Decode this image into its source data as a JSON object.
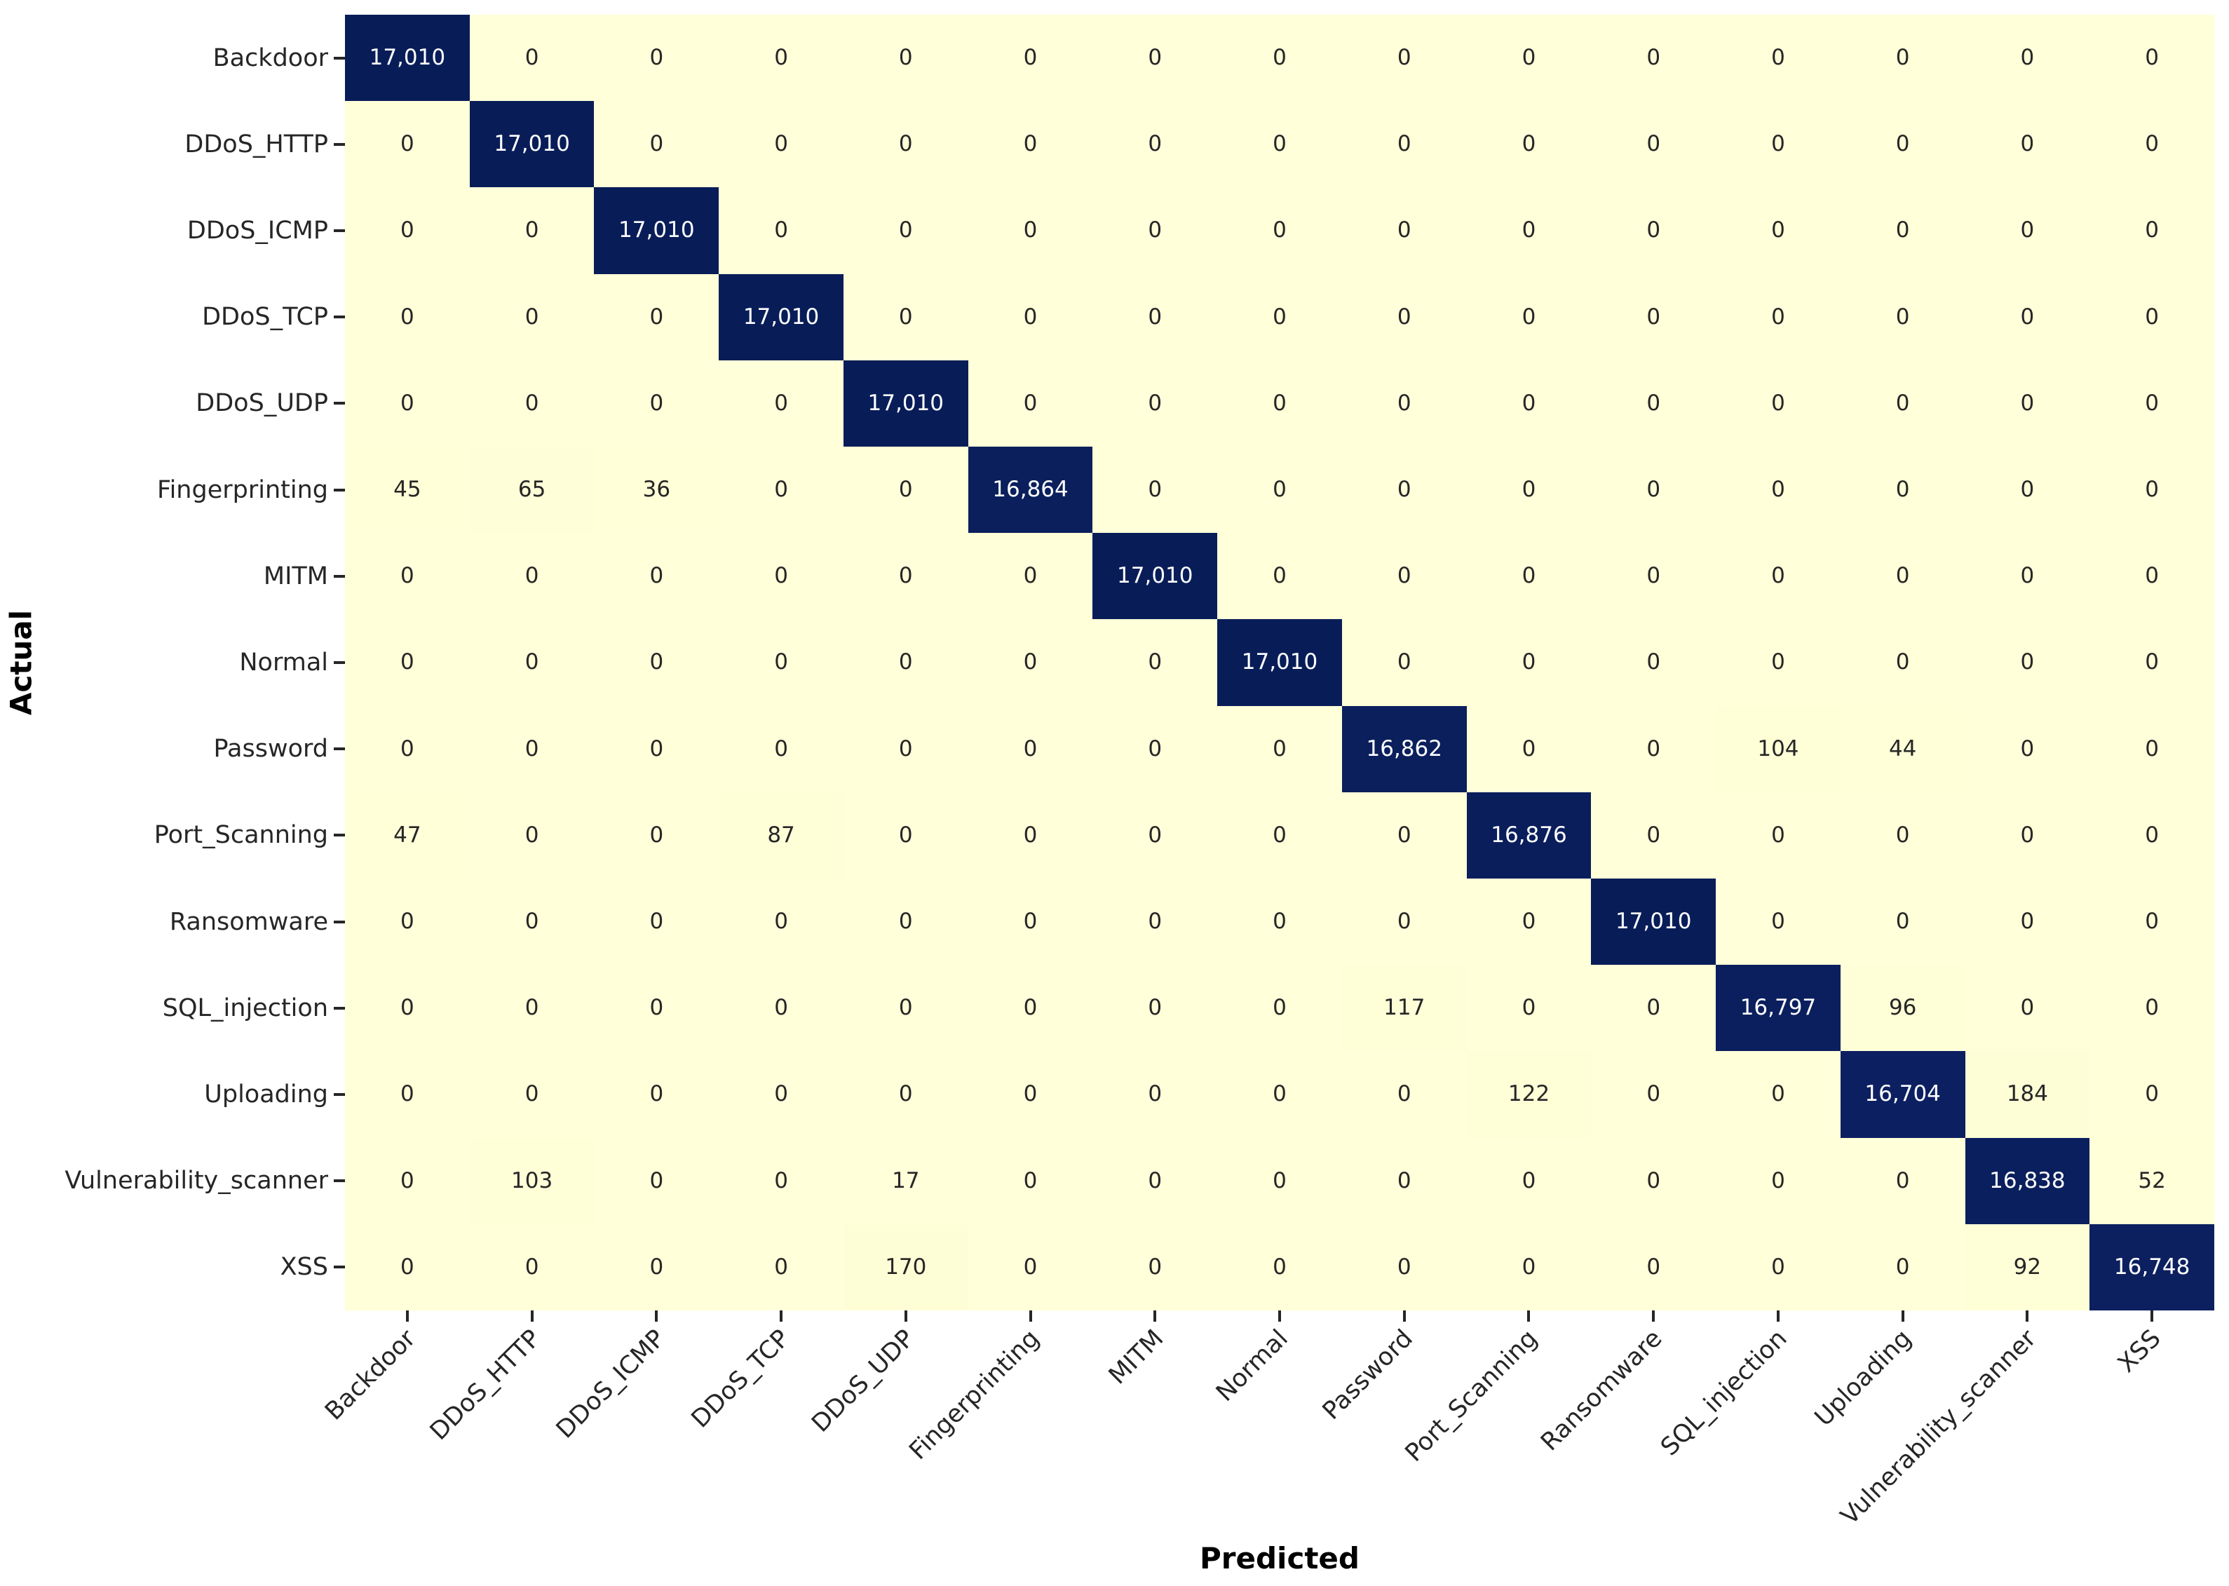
{
  "chart_data": {
    "type": "heatmap",
    "title": "",
    "xlabel": "Predicted",
    "ylabel": "Actual",
    "categories": [
      "Backdoor",
      "DDoS_HTTP",
      "DDoS_ICMP",
      "DDoS_TCP",
      "DDoS_UDP",
      "Fingerprinting",
      "MITM",
      "Normal",
      "Password",
      "Port_Scanning",
      "Ransomware",
      "SQL_injection",
      "Uploading",
      "Vulnerability_scanner",
      "XSS"
    ],
    "matrix": [
      [
        17010,
        0,
        0,
        0,
        0,
        0,
        0,
        0,
        0,
        0,
        0,
        0,
        0,
        0,
        0
      ],
      [
        0,
        17010,
        0,
        0,
        0,
        0,
        0,
        0,
        0,
        0,
        0,
        0,
        0,
        0,
        0
      ],
      [
        0,
        0,
        17010,
        0,
        0,
        0,
        0,
        0,
        0,
        0,
        0,
        0,
        0,
        0,
        0
      ],
      [
        0,
        0,
        0,
        17010,
        0,
        0,
        0,
        0,
        0,
        0,
        0,
        0,
        0,
        0,
        0
      ],
      [
        0,
        0,
        0,
        0,
        17010,
        0,
        0,
        0,
        0,
        0,
        0,
        0,
        0,
        0,
        0
      ],
      [
        45,
        65,
        36,
        0,
        0,
        16864,
        0,
        0,
        0,
        0,
        0,
        0,
        0,
        0,
        0
      ],
      [
        0,
        0,
        0,
        0,
        0,
        0,
        17010,
        0,
        0,
        0,
        0,
        0,
        0,
        0,
        0
      ],
      [
        0,
        0,
        0,
        0,
        0,
        0,
        0,
        17010,
        0,
        0,
        0,
        0,
        0,
        0,
        0
      ],
      [
        0,
        0,
        0,
        0,
        0,
        0,
        0,
        0,
        16862,
        0,
        0,
        104,
        44,
        0,
        0
      ],
      [
        47,
        0,
        0,
        87,
        0,
        0,
        0,
        0,
        0,
        16876,
        0,
        0,
        0,
        0,
        0
      ],
      [
        0,
        0,
        0,
        0,
        0,
        0,
        0,
        0,
        0,
        0,
        17010,
        0,
        0,
        0,
        0
      ],
      [
        0,
        0,
        0,
        0,
        0,
        0,
        0,
        0,
        117,
        0,
        0,
        16797,
        96,
        0,
        0
      ],
      [
        0,
        0,
        0,
        0,
        0,
        0,
        0,
        0,
        0,
        122,
        0,
        0,
        16704,
        184,
        0
      ],
      [
        0,
        103,
        0,
        0,
        17,
        0,
        0,
        0,
        0,
        0,
        0,
        0,
        0,
        16838,
        52
      ],
      [
        0,
        0,
        0,
        0,
        170,
        0,
        0,
        0,
        0,
        0,
        0,
        0,
        0,
        92,
        16748
      ]
    ],
    "vmin": 0,
    "vmax": 17010,
    "colorbar": false,
    "grid": false,
    "x_tick_rotation_deg": 45,
    "annotation_format": "integer with thousands comma",
    "colormap": {
      "name": "YlGnBu",
      "stops": [
        "#ffffd9",
        "#edf8b1",
        "#c7e9b4",
        "#7fcdbb",
        "#41b6c4",
        "#1d91c0",
        "#225ea8",
        "#253494",
        "#081d58"
      ]
    },
    "colors": {
      "annotation_on_light": "#262626",
      "annotation_on_dark": "#ffffff",
      "tick_label": "#262626",
      "axis_title": "#000000",
      "background": "#ffffff"
    }
  }
}
